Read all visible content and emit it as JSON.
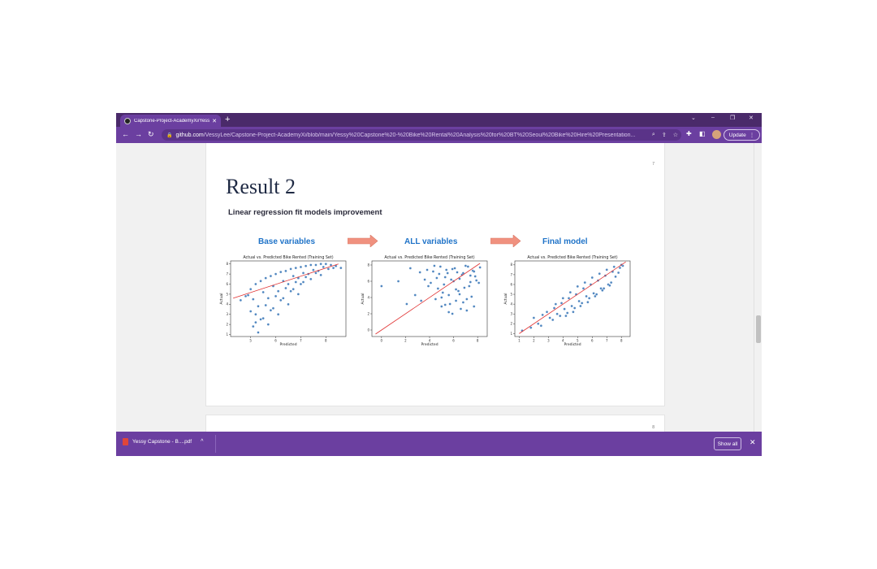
{
  "browser": {
    "tab_title": "Capstone-Project-AcademyXi/Yess",
    "new_tab": "+",
    "url_host": "github.com",
    "url_path": "/VessyLee/Capstone-Project-AcademyXi/blob/main/Yessy%20Capstone%20-%20Bike%20Rental%20Analysis%20for%20BT%20Seoul%20Bike%20Hire%20Presentation...",
    "update_label": "Update",
    "icons": [
      "back-icon",
      "forward-icon",
      "reload-icon",
      "lock-icon",
      "zoom-icon",
      "share-icon",
      "star-icon",
      "extensions-icon",
      "sidepanel-icon",
      "profile-icon",
      "menu-icon"
    ]
  },
  "slide": {
    "page_number": "7",
    "next_page_number": "8",
    "title": "Result 2",
    "subtitle": "Linear regression fit models improvement",
    "stages": [
      "Base variables",
      "ALL variables",
      "Final model"
    ],
    "arrow_color": "#f0917f"
  },
  "chart_data": [
    {
      "type": "scatter",
      "title": "Actual vs. Predicted Bike Rented (Training Set)",
      "xlabel": "Predicted",
      "ylabel": "Actual",
      "xticks": [
        "5",
        "6",
        "7",
        "8"
      ],
      "yticks": [
        "1",
        "2",
        "3",
        "4",
        "5",
        "6",
        "7",
        "8"
      ],
      "xlim": [
        4.2,
        8.8
      ],
      "ylim": [
        0.8,
        8.3
      ],
      "fit_line": [
        [
          4.3,
          4.6
        ],
        [
          8.5,
          8.0
        ]
      ],
      "point_color": "#3b78b8",
      "line_color": "#e03030",
      "x": [
        4.8,
        5.0,
        5.2,
        5.4,
        5.6,
        5.8,
        6.0,
        6.2,
        6.4,
        6.6,
        6.8,
        7.0,
        7.2,
        7.4,
        7.6,
        7.8,
        8.0,
        8.2,
        8.4,
        5.1,
        5.5,
        5.9,
        6.3,
        6.7,
        7.1,
        7.5,
        7.9,
        8.3,
        5.3,
        5.7,
        6.1,
        6.5,
        6.9,
        7.3,
        7.7,
        8.1,
        5.2,
        5.6,
        6.0,
        6.4,
        6.8,
        7.2,
        7.6,
        5.4,
        5.8,
        6.2,
        6.6,
        7.0,
        7.4,
        7.8,
        5.1,
        5.5,
        5.9,
        6.3,
        6.7,
        7.1,
        5.3,
        5.7,
        6.1,
        6.5,
        6.9,
        4.6,
        4.9,
        5.0,
        5.2,
        8.6
      ],
      "y": [
        4.8,
        5.5,
        6.0,
        6.3,
        6.6,
        6.8,
        7.0,
        7.2,
        7.3,
        7.5,
        7.6,
        7.7,
        7.8,
        7.9,
        7.9,
        8.0,
        8.0,
        7.9,
        7.8,
        4.5,
        5.2,
        5.8,
        6.3,
        6.8,
        7.1,
        7.4,
        7.7,
        7.6,
        3.8,
        4.6,
        5.3,
        6.0,
        6.6,
        7.0,
        7.3,
        7.5,
        3.0,
        3.9,
        4.8,
        5.6,
        6.2,
        6.7,
        7.1,
        2.5,
        3.4,
        4.4,
        5.3,
        6.0,
        6.5,
        6.9,
        1.8,
        2.6,
        3.6,
        4.6,
        5.5,
        6.2,
        1.2,
        2.0,
        3.0,
        4.0,
        5.0,
        4.4,
        4.9,
        3.3,
        2.2,
        7.6
      ]
    },
    {
      "type": "scatter",
      "title": "Actual vs. Predicted Bike Rented (Training Set)",
      "xlabel": "Predicted",
      "ylabel": "Actual",
      "xticks": [
        "0",
        "2",
        "4",
        "6",
        "8"
      ],
      "yticks": [
        "0",
        "2",
        "4",
        "6",
        "8"
      ],
      "xlim": [
        -0.8,
        8.8
      ],
      "ylim": [
        -0.8,
        8.5
      ],
      "fit_line": [
        [
          -0.5,
          -0.5
        ],
        [
          8.2,
          8.2
        ]
      ],
      "point_color": "#3b78b8",
      "line_color": "#e03030",
      "x": [
        4.3,
        4.6,
        4.9,
        5.2,
        5.5,
        5.8,
        6.1,
        6.4,
        6.7,
        7.0,
        7.3,
        7.6,
        7.9,
        8.2,
        4.5,
        4.8,
        5.1,
        5.4,
        5.7,
        6.0,
        6.3,
        6.6,
        6.9,
        7.2,
        7.5,
        7.8,
        8.1,
        4.4,
        4.7,
        5.0,
        5.3,
        5.6,
        5.9,
        6.2,
        6.5,
        6.8,
        7.1,
        7.4,
        7.7,
        5.0,
        5.6,
        6.2,
        6.8,
        7.4,
        5.3,
        5.9,
        6.5,
        7.1,
        7.7,
        3.2,
        3.6,
        2.8,
        2.4,
        3.9,
        1.4,
        2.1,
        3.3,
        3.8,
        4.1,
        0.0
      ],
      "y": [
        7.2,
        6.4,
        7.8,
        5.6,
        7.0,
        6.2,
        7.6,
        4.8,
        6.8,
        7.9,
        5.4,
        7.3,
        6.1,
        7.7,
        3.8,
        6.9,
        4.6,
        7.4,
        3.2,
        6.0,
        7.1,
        2.6,
        5.2,
        7.8,
        4.1,
        6.6,
        5.8,
        7.9,
        5.1,
        2.9,
        6.5,
        4.3,
        7.5,
        3.6,
        6.3,
        7.0,
        2.4,
        5.9,
        7.2,
        4.0,
        2.2,
        5.0,
        3.4,
        6.7,
        3.1,
        2.0,
        4.4,
        3.8,
        2.9,
        7.1,
        6.2,
        4.3,
        7.6,
        5.4,
        6.0,
        3.2,
        3.6,
        7.4,
        5.8,
        5.4
      ]
    },
    {
      "type": "scatter",
      "title": "Actual vs. Predicted Bike Rented (Training Set)",
      "xlabel": "Predicted",
      "ylabel": "Actual",
      "xticks": [
        "1",
        "2",
        "3",
        "4",
        "5",
        "6",
        "7",
        "8"
      ],
      "yticks": [
        "1",
        "2",
        "3",
        "4",
        "5",
        "6",
        "7",
        "8"
      ],
      "xlim": [
        0.7,
        8.6
      ],
      "ylim": [
        0.7,
        8.4
      ],
      "fit_line": [
        [
          1.0,
          1.0
        ],
        [
          8.3,
          8.3
        ]
      ],
      "point_color": "#3b78b8",
      "line_color": "#e03030",
      "x": [
        1.2,
        1.8,
        2.3,
        2.6,
        2.9,
        3.1,
        3.4,
        3.6,
        3.9,
        4.1,
        4.4,
        4.6,
        4.9,
        5.1,
        5.4,
        5.6,
        5.9,
        6.1,
        6.4,
        6.6,
        6.9,
        7.1,
        7.4,
        7.6,
        7.9,
        8.1,
        3.3,
        3.8,
        4.3,
        4.8,
        5.3,
        5.8,
        6.3,
        6.8,
        7.3,
        7.8,
        3.5,
        4.0,
        4.5,
        5.0,
        5.5,
        6.0,
        6.5,
        7.0,
        7.5,
        8.0,
        4.2,
        4.7,
        5.2,
        5.7,
        6.2,
        6.7,
        7.2,
        2.0,
        2.5
      ],
      "y": [
        1.3,
        1.6,
        2.0,
        2.9,
        3.2,
        2.6,
        3.6,
        3.0,
        4.1,
        3.5,
        4.6,
        3.8,
        5.0,
        4.3,
        5.6,
        4.8,
        6.0,
        5.1,
        6.4,
        5.6,
        6.9,
        6.0,
        7.3,
        6.8,
        7.7,
        7.9,
        2.4,
        2.8,
        3.1,
        3.6,
        4.1,
        4.6,
        5.0,
        5.6,
        6.2,
        7.2,
        4.0,
        4.6,
        5.2,
        5.8,
        6.2,
        6.7,
        7.1,
        7.5,
        7.8,
        8.0,
        2.8,
        3.2,
        3.8,
        4.2,
        4.8,
        5.4,
        5.9,
        2.6,
        1.8
      ]
    }
  ]
}
